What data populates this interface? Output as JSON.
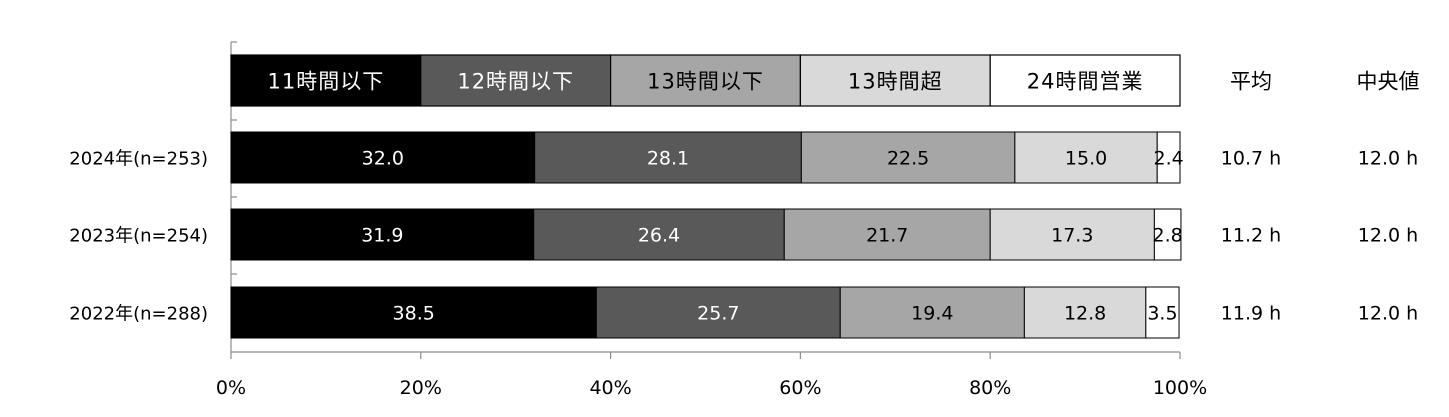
{
  "chart_data": {
    "type": "bar",
    "orientation": "horizontal",
    "stacked": true,
    "percent_scale": true,
    "categories": [
      "2024年(n=253)",
      "2023年(n=254)",
      "2022年(n=288)"
    ],
    "series": [
      {
        "name": "11時間以下",
        "color": "#000000",
        "label_color": "#ffffff",
        "values": [
          32.0,
          31.9,
          38.5
        ]
      },
      {
        "name": "12時間以下",
        "color": "#595959",
        "label_color": "#ffffff",
        "values": [
          28.1,
          26.4,
          25.7
        ]
      },
      {
        "name": "13時間以下",
        "color": "#a6a6a6",
        "label_color": "#000000",
        "values": [
          22.5,
          21.7,
          19.4
        ]
      },
      {
        "name": "13時間超",
        "color": "#d9d9d9",
        "label_color": "#000000",
        "values": [
          15.0,
          17.3,
          12.8
        ]
      },
      {
        "name": "24時間営業",
        "color": "#ffffff",
        "label_color": "#000000",
        "values": [
          2.4,
          2.8,
          3.5
        ]
      }
    ],
    "xlim": [
      0,
      100
    ],
    "xticks": [
      "0%",
      "20%",
      "40%",
      "60%",
      "80%",
      "100%"
    ],
    "legend_position": "top",
    "extra_columns": {
      "headers": [
        "平均",
        "中央値"
      ],
      "rows": [
        [
          "10.7 h",
          "12.0 h"
        ],
        [
          "11.2 h",
          "12.0 h"
        ],
        [
          "11.9 h",
          "12.0 h"
        ]
      ]
    }
  }
}
